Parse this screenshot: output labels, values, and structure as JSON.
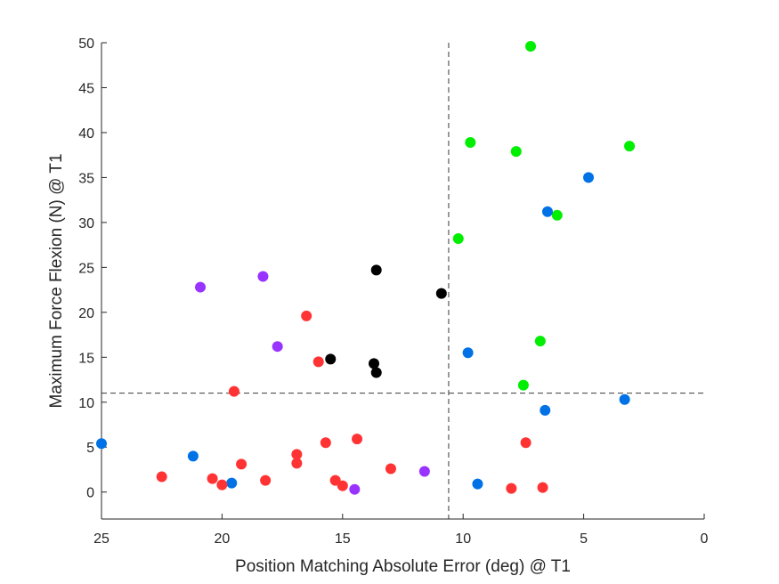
{
  "chart_data": {
    "type": "scatter",
    "xlabel": "Position Matching Absolute Error (deg) @ T1",
    "ylabel": "Maximum Force Flexion (N) @ T1",
    "xlim": [
      25,
      0
    ],
    "x_reversed": true,
    "ylim": [
      -3,
      50
    ],
    "xticks": [
      25,
      20,
      15,
      10,
      5,
      0
    ],
    "yticks": [
      0,
      5,
      10,
      15,
      20,
      25,
      30,
      35,
      40,
      45,
      50
    ],
    "grid": false,
    "reference_lines": {
      "x": 10.6,
      "y": 11.0,
      "style": "dashed"
    },
    "series": [
      {
        "color": "#00ee00",
        "points": [
          [
            7.2,
            49.6
          ],
          [
            9.7,
            38.9
          ],
          [
            7.8,
            37.9
          ],
          [
            3.1,
            38.5
          ],
          [
            6.1,
            30.8
          ],
          [
            10.2,
            28.2
          ],
          [
            6.8,
            16.8
          ],
          [
            7.5,
            11.9
          ]
        ]
      },
      {
        "color": "#0072e6",
        "points": [
          [
            4.8,
            35.0
          ],
          [
            6.5,
            31.2
          ],
          [
            9.8,
            15.5
          ],
          [
            3.3,
            10.3
          ],
          [
            6.6,
            9.1
          ],
          [
            25.0,
            5.4
          ],
          [
            21.2,
            4.0
          ],
          [
            19.6,
            1.0
          ],
          [
            9.4,
            0.9
          ]
        ]
      },
      {
        "color": "#9933ff",
        "points": [
          [
            20.9,
            22.8
          ],
          [
            18.3,
            24.0
          ],
          [
            17.7,
            16.2
          ],
          [
            14.5,
            0.3
          ],
          [
            11.6,
            2.3
          ]
        ]
      },
      {
        "color": "#000000",
        "points": [
          [
            13.6,
            24.7
          ],
          [
            10.9,
            22.1
          ],
          [
            15.5,
            14.8
          ],
          [
            13.7,
            14.3
          ],
          [
            13.6,
            13.3
          ]
        ]
      },
      {
        "color": "#ff3333",
        "points": [
          [
            16.5,
            19.6
          ],
          [
            16.0,
            14.5
          ],
          [
            19.5,
            11.2
          ],
          [
            15.7,
            5.5
          ],
          [
            14.4,
            5.9
          ],
          [
            16.9,
            4.2
          ],
          [
            16.9,
            3.2
          ],
          [
            19.2,
            3.1
          ],
          [
            13.0,
            2.6
          ],
          [
            22.5,
            1.7
          ],
          [
            20.4,
            1.5
          ],
          [
            20.0,
            0.8
          ],
          [
            18.2,
            1.3
          ],
          [
            15.3,
            1.3
          ],
          [
            15.0,
            0.7
          ],
          [
            8.0,
            0.4
          ],
          [
            6.7,
            0.5
          ],
          [
            7.4,
            5.5
          ]
        ]
      }
    ]
  }
}
